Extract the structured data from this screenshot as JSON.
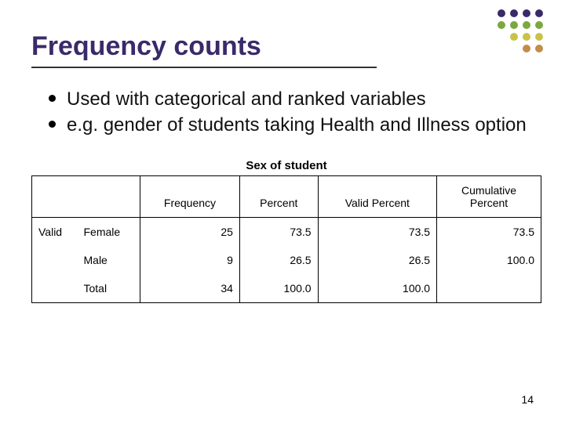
{
  "decoration": {
    "colors_row1": [
      "#3a2a6a",
      "#3a2a6a",
      "#3a2a6a",
      "#3a2a6a"
    ],
    "colors_row2": [
      "#7ba83f",
      "#7ba83f",
      "#7ba83f",
      "#7ba83f"
    ],
    "colors_row3": [
      "#c9c24a",
      "#c9c24a",
      "#c9c24a"
    ],
    "colors_row4": [
      "#c48b4a",
      "#c48b4a"
    ]
  },
  "title": {
    "text": "Frequency counts",
    "color": "#3a2a6a"
  },
  "bullets": [
    "Used with categorical and ranked variables",
    "e.g. gender of students taking Health and Illness option"
  ],
  "table": {
    "caption": "Sex of student",
    "columns": [
      "Frequency",
      "Percent",
      "Valid Percent",
      "Cumulative Percent"
    ],
    "stub1": "Valid",
    "rows": [
      {
        "label": "Female",
        "freq": "25",
        "pct": "73.5",
        "vpct": "73.5",
        "cpct": "73.5"
      },
      {
        "label": "Male",
        "freq": "9",
        "pct": "26.5",
        "vpct": "26.5",
        "cpct": "100.0"
      },
      {
        "label": "Total",
        "freq": "34",
        "pct": "100.0",
        "vpct": "100.0",
        "cpct": ""
      }
    ]
  },
  "page_number": "14"
}
